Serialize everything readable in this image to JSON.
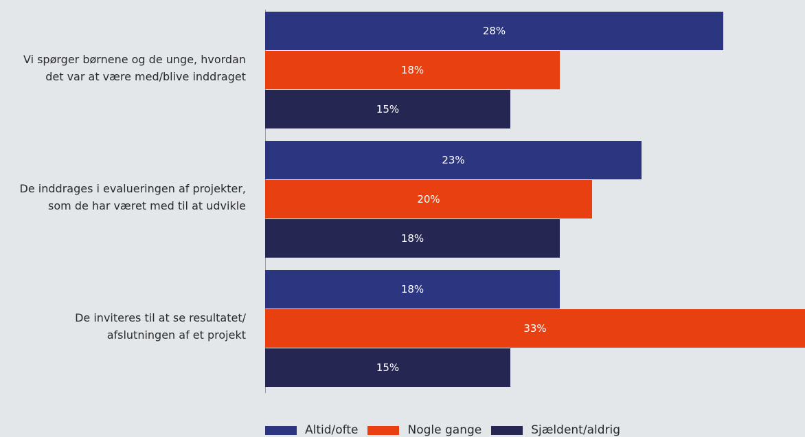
{
  "chart_data": {
    "type": "bar",
    "orientation": "horizontal",
    "categories": [
      [
        "Vi spørger børnene og de unge, hvordan",
        "det var at være med/blive inddraget"
      ],
      [
        "De inddrages i evalueringen af projekter,",
        "som de har været med til at udvikle"
      ],
      [
        "De inviteres til at se resultatet/",
        "afslutningen af et projekt"
      ]
    ],
    "series": [
      {
        "name": "Altid/ofte",
        "color": "#2b3580",
        "values": [
          28,
          23,
          18
        ]
      },
      {
        "name": "Nogle gange",
        "color": "#e84011",
        "values": [
          18,
          20,
          33
        ]
      },
      {
        "name": "Sjældent/aldrig",
        "color": "#262653",
        "values": [
          15,
          18,
          15
        ]
      }
    ],
    "value_suffix": "%",
    "xlim": [
      0,
      33
    ],
    "grid": false,
    "legend": "bottom"
  }
}
